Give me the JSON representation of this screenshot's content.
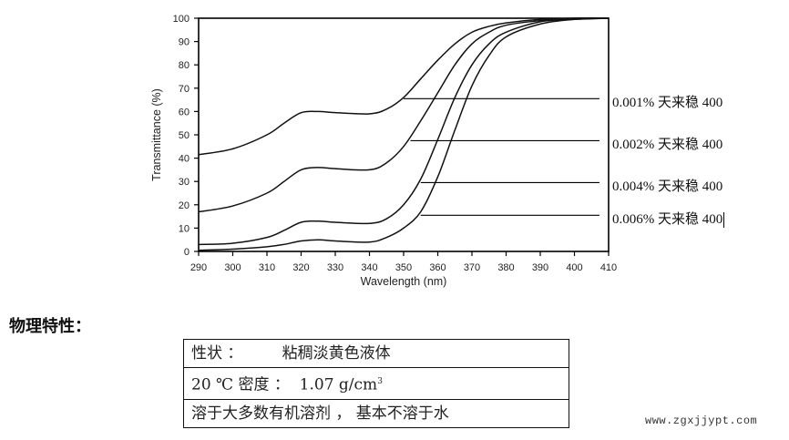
{
  "chart_data": {
    "type": "line",
    "title": "",
    "xlabel": "Wavelength (nm)",
    "ylabel": "Transmittance (%)",
    "xlim": [
      290,
      410
    ],
    "ylim": [
      0,
      100
    ],
    "xticks": [
      290,
      300,
      310,
      320,
      330,
      340,
      350,
      360,
      370,
      380,
      390,
      400,
      410
    ],
    "yticks": [
      0,
      10,
      20,
      30,
      40,
      50,
      60,
      70,
      80,
      90,
      100
    ],
    "grid": false,
    "legend_position": "right, leader lines",
    "x": [
      290,
      300,
      310,
      315,
      320,
      325,
      330,
      340,
      345,
      350,
      355,
      360,
      365,
      370,
      375,
      380,
      390,
      400,
      410
    ],
    "series": [
      {
        "name": "0.001% 天来稳 400",
        "values": [
          41.5,
          44,
          50,
          55,
          59.5,
          60,
          59.5,
          59,
          61,
          66,
          74,
          82,
          89,
          94,
          96.5,
          98,
          99.5,
          100,
          100
        ]
      },
      {
        "name": "0.002% 天来稳 400",
        "values": [
          17,
          19.5,
          25,
          30,
          35,
          36,
          35.5,
          35,
          38,
          45,
          56,
          68,
          80,
          89,
          94,
          97,
          99,
          100,
          100
        ]
      },
      {
        "name": "0.004% 天来稳 400",
        "values": [
          3,
          3.5,
          6,
          9,
          12.5,
          13,
          12.5,
          12,
          14,
          20,
          31,
          48,
          66,
          80,
          89,
          94,
          98.5,
          99.5,
          100
        ]
      },
      {
        "name": "0.006% 天来稳 400",
        "values": [
          0.5,
          1,
          2,
          3,
          4.5,
          5,
          4.5,
          4,
          6,
          10,
          17,
          32,
          52,
          71,
          84,
          92,
          97.5,
          99.5,
          100
        ]
      }
    ],
    "leader_lines": [
      {
        "series": 0,
        "y_pct": 65.5,
        "x_start_nm": 350
      },
      {
        "series": 1,
        "y_pct": 47.5,
        "x_start_nm": 352
      },
      {
        "series": 2,
        "y_pct": 29.5,
        "x_start_nm": 355
      },
      {
        "series": 3,
        "y_pct": 15.5,
        "x_start_nm": 355
      }
    ]
  },
  "legend": {
    "items": [
      {
        "label": "0.001%  天来稳  400"
      },
      {
        "label": "0.002%  天来稳  400"
      },
      {
        "label": "0.004%  天来稳  400"
      },
      {
        "label": "0.006%  天来稳  400"
      }
    ]
  },
  "properties": {
    "title": "物理特性：",
    "rows": [
      {
        "text": "性状 ：        粘稠淡黄色液体"
      },
      {
        "text_main": "20 ℃ 密度 ：  1.07 g/cm",
        "superscript": "3"
      },
      {
        "text": "溶于大多数有机溶剂 ， 基本不溶于水"
      }
    ]
  },
  "watermark": "www.zgxjjypt.com"
}
